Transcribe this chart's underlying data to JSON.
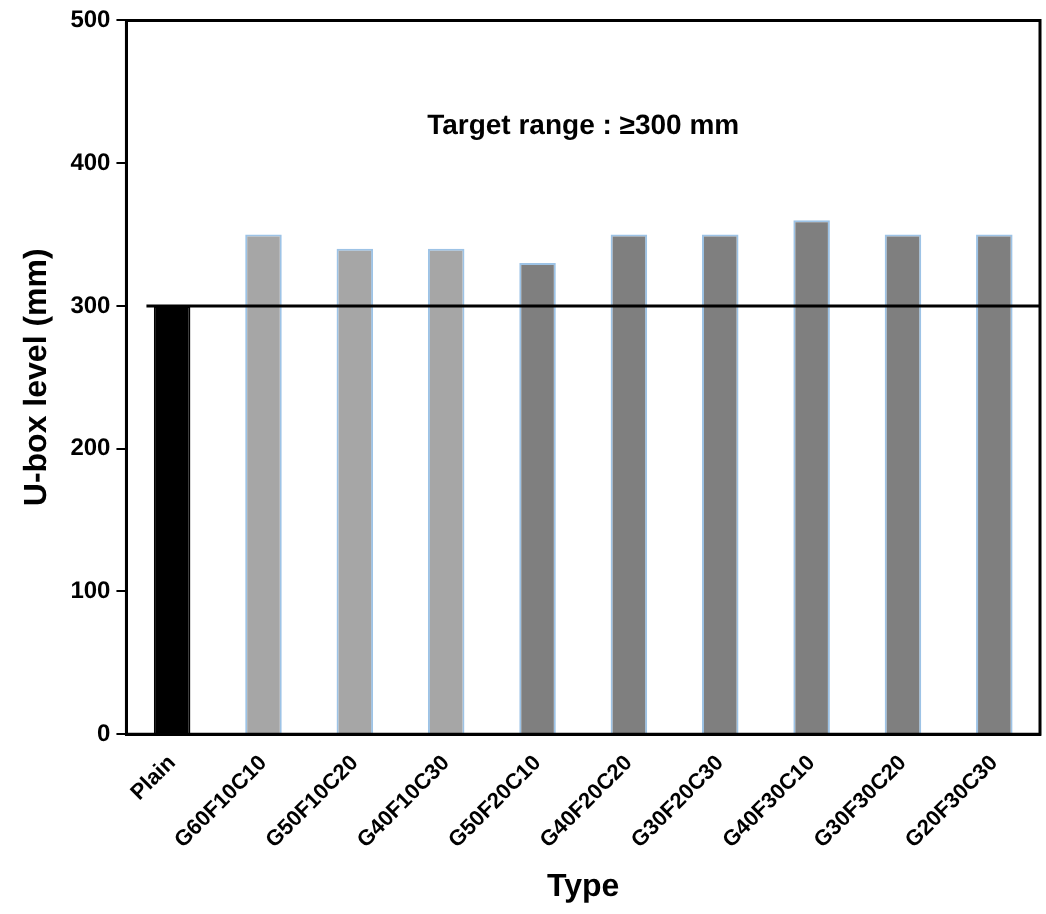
{
  "chart_data": {
    "type": "bar",
    "xlabel": "Type",
    "ylabel": "U-box level (mm)",
    "categories": [
      "Plain",
      "G60F10C10",
      "G50F10C20",
      "G40F10C30",
      "G50F20C10",
      "G40F20C20",
      "G30F20C30",
      "G40F30C10",
      "G30F30C20",
      "G20F30C30"
    ],
    "values": [
      300,
      350,
      340,
      340,
      330,
      350,
      350,
      360,
      350,
      350
    ],
    "colors": [
      "#000000",
      "#a6a6a6",
      "#a6a6a6",
      "#a6a6a6",
      "#7f7f7f",
      "#7f7f7f",
      "#7f7f7f",
      "#7f7f7f",
      "#7f7f7f",
      "#7f7f7f"
    ],
    "ylim": [
      0,
      500
    ],
    "yticks": [
      0,
      100,
      200,
      300,
      400,
      500
    ],
    "grid": false,
    "legend": false,
    "ref_lines": [
      {
        "axis": "y",
        "value": 300,
        "color": "#000000"
      }
    ],
    "annotations": [
      "Target range : ≥300 mm"
    ]
  }
}
